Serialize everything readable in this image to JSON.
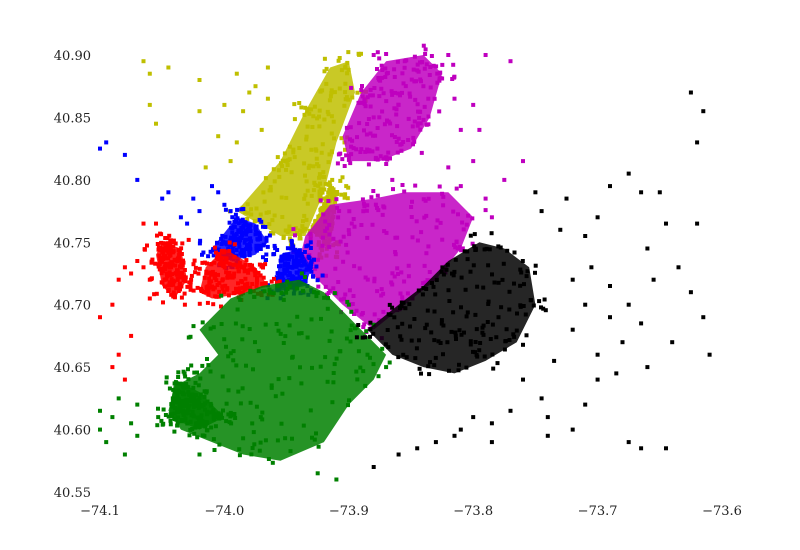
{
  "chart_data": {
    "type": "scatter",
    "title": "",
    "xlabel": "",
    "ylabel": "",
    "xlim": [
      -74.1,
      -73.6
    ],
    "ylim": [
      40.55,
      40.9
    ],
    "grid": false,
    "x_ticks": [
      -74.1,
      -74.0,
      -73.9,
      -73.8,
      -73.7,
      -73.6
    ],
    "x_tick_labels": [
      "−74.1",
      "−74.0",
      "−73.9",
      "−73.8",
      "−73.7",
      "−73.6"
    ],
    "y_ticks": [
      40.55,
      40.6,
      40.65,
      40.7,
      40.75,
      40.8,
      40.85,
      40.9
    ],
    "y_tick_labels": [
      "40.55",
      "40.60",
      "40.65",
      "40.70",
      "40.75",
      "40.80",
      "40.85",
      "40.90"
    ],
    "series": [
      {
        "color": "#bfbf00",
        "dense_polygons": [
          [
            [
              -73.99,
              40.775
            ],
            [
              -73.955,
              40.815
            ],
            [
              -73.935,
              40.855
            ],
            [
              -73.915,
              40.89
            ],
            [
              -73.9,
              40.895
            ],
            [
              -73.895,
              40.87
            ],
            [
              -73.91,
              40.83
            ],
            [
              -73.92,
              40.79
            ],
            [
              -73.935,
              40.755
            ],
            [
              -73.955,
              40.755
            ]
          ],
          [
            [
              -73.93,
              40.76
            ],
            [
              -73.915,
              40.795
            ],
            [
              -73.91,
              40.79
            ],
            [
              -73.915,
              40.745
            ]
          ]
        ],
        "points": [
          [
            -74.065,
            40.895
          ],
          [
            -74.06,
            40.885
          ],
          [
            -74.045,
            40.89
          ],
          [
            -74.02,
            40.88
          ],
          [
            -73.99,
            40.885
          ],
          [
            -73.965,
            40.89
          ],
          [
            -73.975,
            40.875
          ],
          [
            -74.0,
            40.86
          ],
          [
            -74.02,
            40.855
          ],
          [
            -73.985,
            40.855
          ],
          [
            -74.005,
            40.835
          ],
          [
            -73.99,
            40.83
          ],
          [
            -74.015,
            40.81
          ],
          [
            -73.995,
            40.815
          ],
          [
            -73.97,
            40.84
          ],
          [
            -73.98,
            40.87
          ],
          [
            -74.06,
            40.86
          ],
          [
            -74.055,
            40.845
          ],
          [
            -73.965,
            40.865
          ]
        ]
      },
      {
        "color": "#bf00bf",
        "dense_polygons": [
          [
            [
              -73.935,
              40.755
            ],
            [
              -73.915,
              40.78
            ],
            [
              -73.88,
              40.785
            ],
            [
              -73.855,
              40.79
            ],
            [
              -73.82,
              40.79
            ],
            [
              -73.8,
              40.77
            ],
            [
              -73.81,
              40.745
            ],
            [
              -73.83,
              40.72
            ],
            [
              -73.855,
              40.7
            ],
            [
              -73.88,
              40.68
            ],
            [
              -73.905,
              40.7
            ],
            [
              -73.92,
              40.715
            ],
            [
              -73.94,
              40.735
            ]
          ],
          [
            [
              -73.905,
              40.835
            ],
            [
              -73.89,
              40.87
            ],
            [
              -73.87,
              40.895
            ],
            [
              -73.84,
              40.9
            ],
            [
              -73.825,
              40.885
            ],
            [
              -73.835,
              40.85
            ],
            [
              -73.85,
              40.825
            ],
            [
              -73.875,
              40.815
            ],
            [
              -73.9,
              40.815
            ]
          ]
        ],
        "points": [
          [
            -73.88,
            40.9
          ],
          [
            -73.82,
            40.9
          ],
          [
            -73.815,
            40.865
          ],
          [
            -73.84,
            40.875
          ],
          [
            -73.86,
            40.86
          ],
          [
            -73.88,
            40.85
          ],
          [
            -73.81,
            40.84
          ],
          [
            -73.8,
            40.815
          ],
          [
            -73.82,
            40.81
          ],
          [
            -73.855,
            40.895
          ],
          [
            -73.79,
            40.9
          ],
          [
            -73.77,
            40.895
          ],
          [
            -73.785,
            40.77
          ],
          [
            -73.775,
            40.8
          ],
          [
            -73.76,
            40.815
          ],
          [
            -73.795,
            40.84
          ],
          [
            -73.8,
            40.86
          ],
          [
            -73.865,
            40.8
          ],
          [
            -73.81,
            40.795
          ],
          [
            -73.79,
            40.785
          ]
        ]
      },
      {
        "color": "#0000ff",
        "dense_polygons": [
          [
            [
              -74.01,
              40.745
            ],
            [
              -73.99,
              40.77
            ],
            [
              -73.975,
              40.765
            ],
            [
              -73.965,
              40.75
            ],
            [
              -73.975,
              40.74
            ],
            [
              -73.995,
              40.735
            ]
          ],
          [
            [
              -73.96,
              40.71
            ],
            [
              -73.955,
              40.74
            ],
            [
              -73.94,
              40.745
            ],
            [
              -73.93,
              40.73
            ],
            [
              -73.935,
              40.715
            ]
          ]
        ],
        "points": [
          [
            -74.1,
            40.825
          ],
          [
            -74.095,
            40.83
          ],
          [
            -74.08,
            40.82
          ],
          [
            -74.07,
            40.8
          ],
          [
            -74.05,
            40.785
          ],
          [
            -74.045,
            40.79
          ],
          [
            -74.035,
            40.77
          ],
          [
            -74.025,
            40.785
          ],
          [
            -74.02,
            40.775
          ],
          [
            -74.01,
            40.795
          ],
          [
            -74.0,
            40.78
          ],
          [
            -74.03,
            40.765
          ],
          [
            -74.005,
            40.79
          ],
          [
            -73.995,
            40.775
          ]
        ]
      },
      {
        "color": "#ff0000",
        "dense_polygons": [
          [
            [
              -74.0,
              40.745
            ],
            [
              -73.975,
              40.73
            ],
            [
              -73.965,
              40.715
            ],
            [
              -73.98,
              40.71
            ],
            [
              -74.01,
              40.705
            ],
            [
              -74.02,
              40.71
            ],
            [
              -74.015,
              40.73
            ]
          ],
          [
            [
              -74.05,
              40.75
            ],
            [
              -74.035,
              40.745
            ],
            [
              -74.03,
              40.72
            ],
            [
              -74.04,
              40.705
            ],
            [
              -74.05,
              40.715
            ],
            [
              -74.055,
              40.74
            ]
          ]
        ],
        "points": [
          [
            -74.1,
            40.69
          ],
          [
            -74.09,
            40.7
          ],
          [
            -74.085,
            40.72
          ],
          [
            -74.08,
            40.73
          ],
          [
            -74.075,
            40.725
          ],
          [
            -74.07,
            40.735
          ],
          [
            -74.065,
            40.73
          ],
          [
            -74.06,
            40.72
          ],
          [
            -74.09,
            40.65
          ],
          [
            -74.085,
            40.66
          ],
          [
            -74.08,
            40.64
          ],
          [
            -74.075,
            40.675
          ],
          [
            -74.065,
            40.765
          ],
          [
            -74.055,
            40.765
          ],
          [
            -74.06,
            40.705
          ]
        ]
      },
      {
        "color": "#008000",
        "dense_polygons": [
          [
            [
              -74.02,
              40.68
            ],
            [
              -73.995,
              40.705
            ],
            [
              -73.97,
              40.715
            ],
            [
              -73.94,
              40.72
            ],
            [
              -73.92,
              40.71
            ],
            [
              -73.905,
              40.695
            ],
            [
              -73.89,
              40.68
            ],
            [
              -73.87,
              40.66
            ],
            [
              -73.88,
              40.64
            ],
            [
              -73.9,
              40.62
            ],
            [
              -73.92,
              40.59
            ],
            [
              -73.955,
              40.575
            ],
            [
              -73.985,
              40.58
            ],
            [
              -74.01,
              40.59
            ],
            [
              -74.035,
              40.6
            ],
            [
              -74.045,
              40.615
            ],
            [
              -74.04,
              40.635
            ],
            [
              -74.02,
              40.645
            ],
            [
              -74.005,
              40.66
            ]
          ],
          [
            [
              -74.04,
              40.64
            ],
            [
              -74.02,
              40.63
            ],
            [
              -74.0,
              40.61
            ],
            [
              -74.02,
              40.6
            ],
            [
              -74.045,
              40.61
            ]
          ]
        ],
        "points": [
          [
            -74.1,
            40.615
          ],
          [
            -74.1,
            40.6
          ],
          [
            -74.095,
            40.59
          ],
          [
            -74.09,
            40.61
          ],
          [
            -74.085,
            40.625
          ],
          [
            -74.08,
            40.58
          ],
          [
            -74.075,
            40.605
          ],
          [
            -74.07,
            40.595
          ],
          [
            -74.07,
            40.62
          ],
          [
            -73.91,
            40.56
          ],
          [
            -73.925,
            40.565
          ],
          [
            -73.87,
            40.65
          ],
          [
            -73.885,
            40.66
          ],
          [
            -73.9,
            40.7
          ],
          [
            -74.02,
            40.58
          ]
        ]
      },
      {
        "color": "#000000",
        "dense_polygons": [
          [
            [
              -73.885,
              40.68
            ],
            [
              -73.86,
              40.7
            ],
            [
              -73.84,
              40.715
            ],
            [
              -73.82,
              40.735
            ],
            [
              -73.795,
              40.75
            ],
            [
              -73.775,
              40.745
            ],
            [
              -73.755,
              40.73
            ],
            [
              -73.75,
              40.7
            ],
            [
              -73.765,
              40.67
            ],
            [
              -73.79,
              40.655
            ],
            [
              -73.815,
              40.645
            ],
            [
              -73.84,
              40.65
            ],
            [
              -73.865,
              40.66
            ]
          ]
        ],
        "points": [
          [
            -73.75,
            40.79
          ],
          [
            -73.745,
            40.775
          ],
          [
            -73.73,
            40.76
          ],
          [
            -73.71,
            40.755
          ],
          [
            -73.7,
            40.77
          ],
          [
            -73.69,
            40.795
          ],
          [
            -73.675,
            40.805
          ],
          [
            -73.665,
            40.79
          ],
          [
            -73.65,
            40.79
          ],
          [
            -73.645,
            40.765
          ],
          [
            -73.66,
            40.745
          ],
          [
            -73.635,
            40.73
          ],
          [
            -73.625,
            40.71
          ],
          [
            -73.615,
            40.69
          ],
          [
            -73.61,
            40.66
          ],
          [
            -73.64,
            40.67
          ],
          [
            -73.665,
            40.685
          ],
          [
            -73.68,
            40.67
          ],
          [
            -73.7,
            40.66
          ],
          [
            -73.72,
            40.68
          ],
          [
            -73.735,
            40.655
          ],
          [
            -73.745,
            40.625
          ],
          [
            -73.76,
            40.64
          ],
          [
            -73.77,
            40.615
          ],
          [
            -73.785,
            40.605
          ],
          [
            -73.8,
            40.61
          ],
          [
            -73.71,
            40.62
          ],
          [
            -73.72,
            40.6
          ],
          [
            -73.74,
            40.595
          ],
          [
            -73.74,
            40.61
          ],
          [
            -73.785,
            40.59
          ],
          [
            -73.815,
            40.595
          ],
          [
            -73.83,
            40.59
          ],
          [
            -73.845,
            40.585
          ],
          [
            -73.86,
            40.58
          ],
          [
            -73.88,
            40.57
          ],
          [
            -73.81,
            40.6
          ],
          [
            -73.675,
            40.59
          ],
          [
            -73.665,
            40.585
          ],
          [
            -73.645,
            40.585
          ],
          [
            -73.62,
            40.83
          ],
          [
            -73.615,
            40.855
          ],
          [
            -73.625,
            40.87
          ],
          [
            -73.62,
            40.765
          ],
          [
            -73.725,
            40.785
          ],
          [
            -73.705,
            40.73
          ],
          [
            -73.69,
            40.715
          ],
          [
            -73.675,
            40.7
          ],
          [
            -73.655,
            40.72
          ],
          [
            -73.7,
            40.64
          ],
          [
            -73.685,
            40.645
          ],
          [
            -73.66,
            40.65
          ],
          [
            -73.69,
            40.69
          ],
          [
            -73.71,
            40.7
          ],
          [
            -73.72,
            40.72
          ]
        ]
      }
    ]
  }
}
